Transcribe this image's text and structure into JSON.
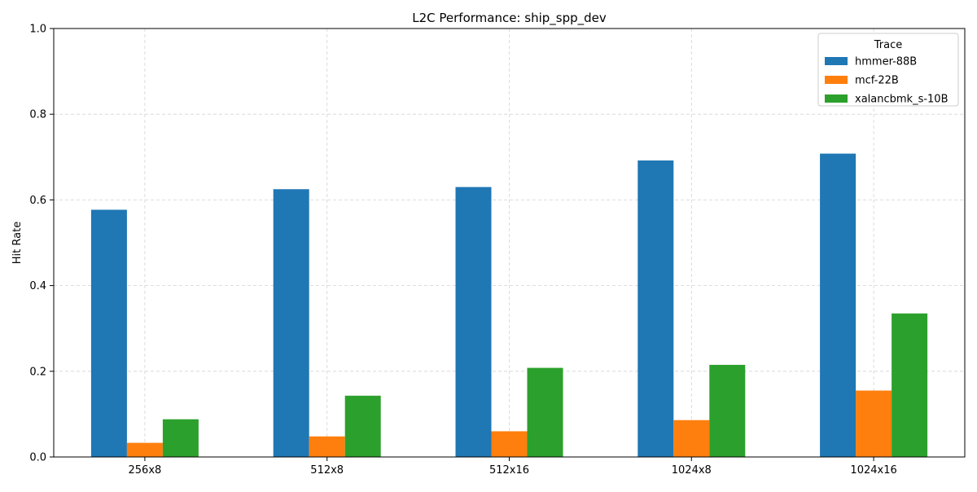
{
  "chart_data": {
    "type": "bar",
    "title": "L2C Performance: ship_spp_dev",
    "xlabel": "",
    "ylabel": "Hit Rate",
    "ylim": [
      0,
      1.0
    ],
    "yticks": [
      "0.0",
      "0.2",
      "0.4",
      "0.6",
      "0.8",
      "1.0"
    ],
    "grid": true,
    "categories": [
      "256x8",
      "512x8",
      "512x16",
      "1024x8",
      "1024x16"
    ],
    "legend": {
      "title": "Trace",
      "placement": "top-right"
    },
    "series": [
      {
        "name": "hmmer-88B",
        "color": "#1f77b4",
        "values": [
          0.577,
          0.625,
          0.63,
          0.692,
          0.708
        ]
      },
      {
        "name": "mcf-22B",
        "color": "#ff7f0e",
        "values": [
          0.033,
          0.048,
          0.06,
          0.086,
          0.155
        ]
      },
      {
        "name": "xalancbmk_s-10B",
        "color": "#2ca02c",
        "values": [
          0.088,
          0.143,
          0.208,
          0.215,
          0.335
        ]
      }
    ]
  }
}
